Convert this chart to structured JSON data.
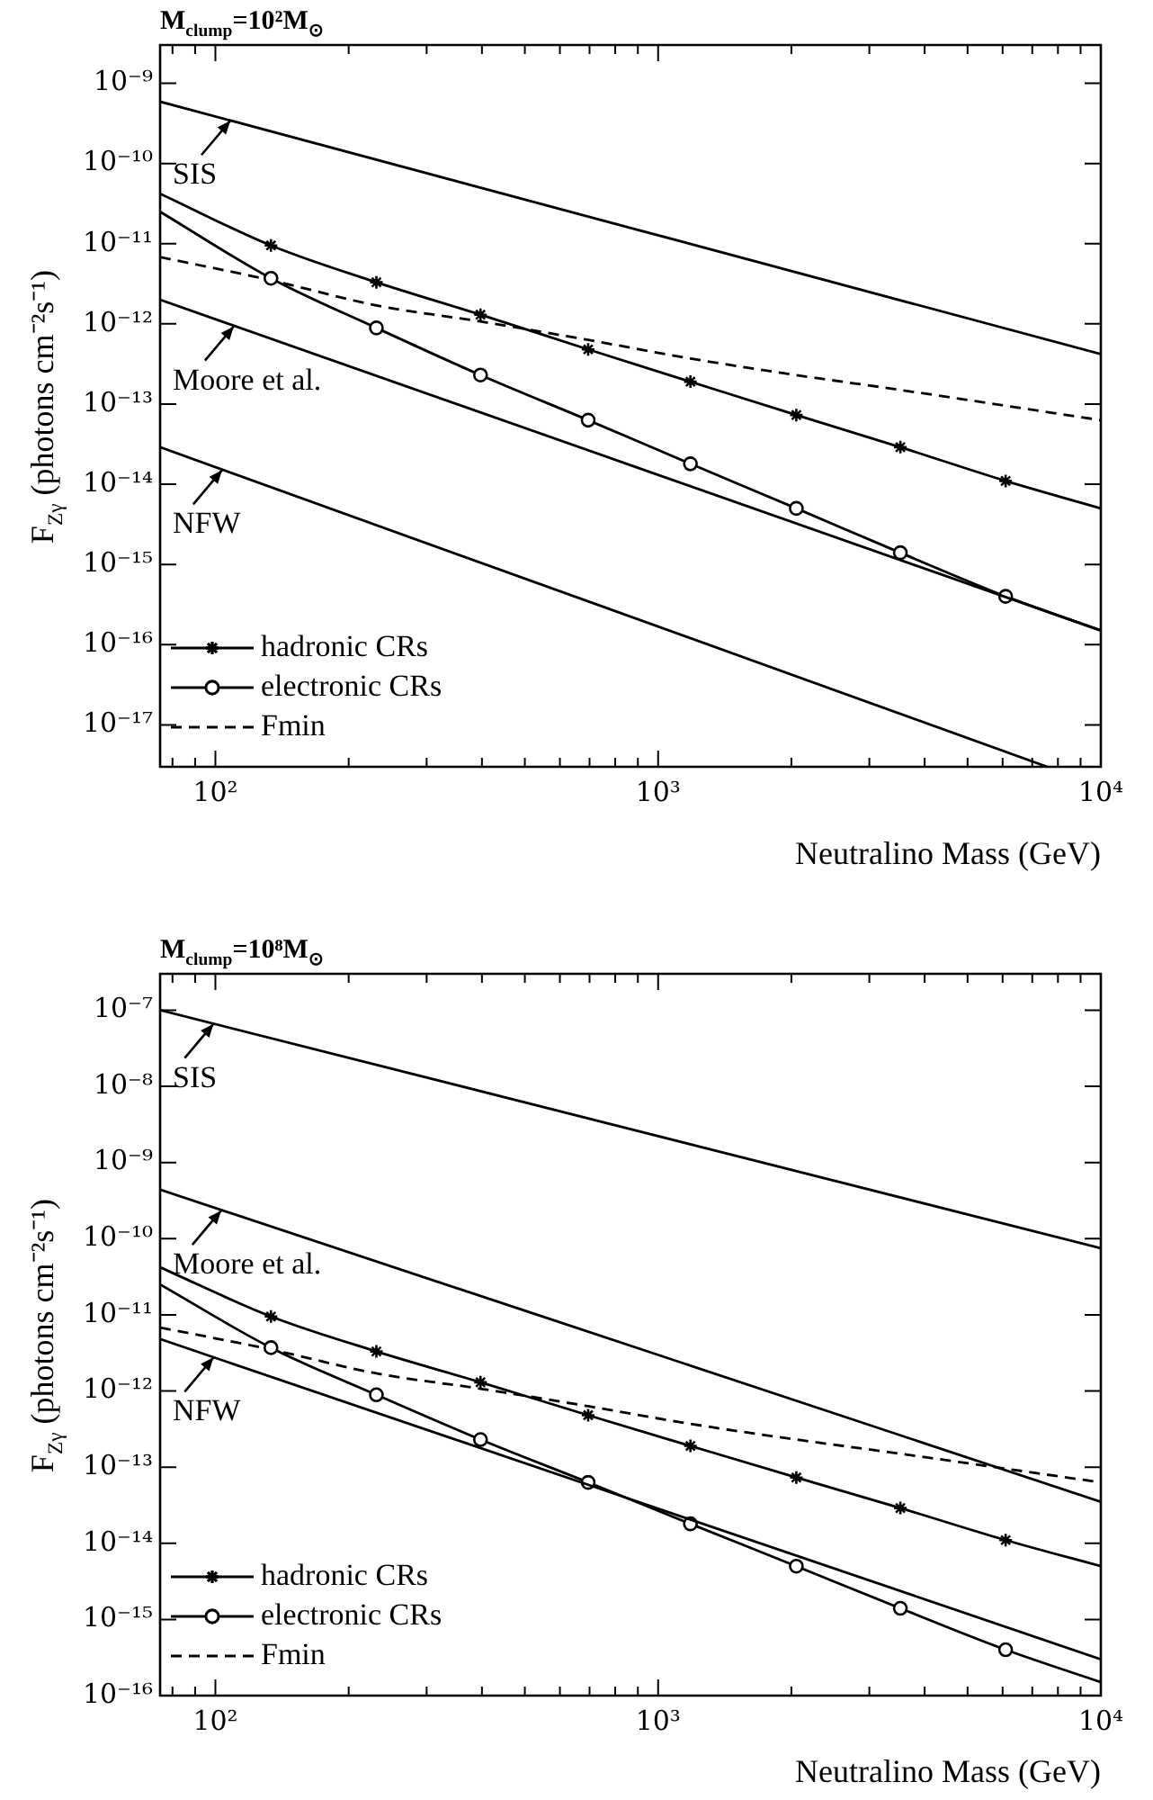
{
  "chart_data": [
    {
      "type": "line",
      "title": "M$_{clump}$=10²M$_{⊙}$",
      "xlabel": "Neutralino Mass (GeV)",
      "ylabel": "F$_{Zγ}$ (photons cm⁻²s⁻¹)",
      "log": "xy",
      "grid": false,
      "legend": "bottom left",
      "xlim": [
        75,
        10000
      ],
      "ylim": [
        3e-18,
        3e-09
      ],
      "xticks": [
        {
          "value": 80,
          "label": null
        },
        {
          "value": 90,
          "label": null
        },
        {
          "value": 100,
          "label": "10²"
        },
        {
          "value": 200,
          "label": null
        },
        {
          "value": 300,
          "label": null
        },
        {
          "value": 400,
          "label": null
        },
        {
          "value": 500,
          "label": null
        },
        {
          "value": 600,
          "label": null
        },
        {
          "value": 700,
          "label": null
        },
        {
          "value": 800,
          "label": null
        },
        {
          "value": 900,
          "label": null
        },
        {
          "value": 1000,
          "label": "10³"
        },
        {
          "value": 2000,
          "label": null
        },
        {
          "value": 3000,
          "label": null
        },
        {
          "value": 4000,
          "label": null
        },
        {
          "value": 5000,
          "label": null
        },
        {
          "value": 6000,
          "label": null
        },
        {
          "value": 7000,
          "label": null
        },
        {
          "value": 8000,
          "label": null
        },
        {
          "value": 9000,
          "label": null
        },
        {
          "value": 10000,
          "label": "10⁴"
        }
      ],
      "yticks": [
        {
          "value": 1e-17,
          "label": "10⁻¹⁷"
        },
        {
          "value": 1e-16,
          "label": "10⁻¹⁶"
        },
        {
          "value": 1e-15,
          "label": "10⁻¹⁵"
        },
        {
          "value": 1e-14,
          "label": "10⁻¹⁴"
        },
        {
          "value": 1e-13,
          "label": "10⁻¹³"
        },
        {
          "value": 1e-12,
          "label": "10⁻¹²"
        },
        {
          "value": 1e-11,
          "label": "10⁻¹¹"
        },
        {
          "value": 1e-10,
          "label": "10⁻¹⁰"
        },
        {
          "value": 1e-09,
          "label": "10⁻⁹"
        }
      ],
      "annotations": [
        {
          "text": "SIS",
          "x": 108,
          "y": 3.4e-10
        },
        {
          "text": "Moore et al.",
          "x": 110,
          "y": 9.3e-13
        },
        {
          "text": "NFW",
          "x": 103.5,
          "y": 1.5e-14
        }
      ],
      "series": [
        {
          "color": "#000000",
          "marker": "none",
          "line_style": "solid",
          "x": [
            75,
            10000
          ],
          "values": [
            5.9e-10,
            4.2e-13
          ]
        },
        {
          "color": "#000000",
          "marker": "none",
          "line_style": "solid",
          "x": [
            75,
            10000
          ],
          "values": [
            2e-12,
            1.5e-16
          ]
        },
        {
          "color": "#000000",
          "marker": "none",
          "line_style": "solid",
          "x": [
            75,
            7570
          ],
          "values": [
            2.9e-14,
            3e-18
          ]
        },
        {
          "name": "hadronic CRs",
          "color": "#000000",
          "marker": "cross",
          "line_style": "solid",
          "x": [
            75,
            133.5,
            231,
            397,
            695,
            1183,
            2052,
            3525,
            6095,
            10000
          ],
          "values": [
            4.2e-11,
            9.5e-12,
            3.3e-12,
            1.3e-12,
            4.8e-13,
            1.9e-13,
            7.3e-14,
            2.9e-14,
            1.1e-14,
            5e-15
          ]
        },
        {
          "name": "electronic CRs",
          "color": "#000000",
          "marker": "circle",
          "line_style": "solid",
          "x": [
            75,
            133.5,
            231,
            397,
            695,
            1183,
            2052,
            3525,
            6095,
            10000
          ],
          "values": [
            2.5e-11,
            3.7e-12,
            8.9e-13,
            2.3e-13,
            6.3e-14,
            1.8e-14,
            5e-15,
            1.4e-15,
            4e-16,
            1.5e-16
          ]
        },
        {
          "name": "Fmin",
          "color": "#000000",
          "marker": "none",
          "line_style": "dashed",
          "x": [
            75,
            133.5,
            231,
            397,
            695,
            1183,
            2052,
            3525,
            10000
          ],
          "values": [
            6.8e-12,
            3.5e-12,
            1.7e-12,
            1.07e-12,
            6.3e-13,
            3.7e-13,
            2.3e-13,
            1.5e-13,
            6.3e-14
          ]
        }
      ]
    },
    {
      "type": "line",
      "title": "M$_{clump}$=10⁸M$_{⊙}$",
      "xlabel": "Neutralino Mass (GeV)",
      "ylabel": "F$_{Zγ}$ (photons cm⁻²s⁻¹)",
      "log": "xy",
      "grid": false,
      "legend": "bottom left",
      "xlim": [
        75,
        10000
      ],
      "ylim": [
        1e-16,
        3e-07
      ],
      "xticks": [
        {
          "value": 80,
          "label": null
        },
        {
          "value": 90,
          "label": null
        },
        {
          "value": 100,
          "label": "10²"
        },
        {
          "value": 200,
          "label": null
        },
        {
          "value": 300,
          "label": null
        },
        {
          "value": 400,
          "label": null
        },
        {
          "value": 500,
          "label": null
        },
        {
          "value": 600,
          "label": null
        },
        {
          "value": 700,
          "label": null
        },
        {
          "value": 800,
          "label": null
        },
        {
          "value": 900,
          "label": null
        },
        {
          "value": 1000,
          "label": "10³"
        },
        {
          "value": 2000,
          "label": null
        },
        {
          "value": 3000,
          "label": null
        },
        {
          "value": 4000,
          "label": null
        },
        {
          "value": 5000,
          "label": null
        },
        {
          "value": 6000,
          "label": null
        },
        {
          "value": 7000,
          "label": null
        },
        {
          "value": 8000,
          "label": null
        },
        {
          "value": 9000,
          "label": null
        },
        {
          "value": 10000,
          "label": "10⁴"
        }
      ],
      "yticks": [
        {
          "value": 1e-16,
          "label": "10⁻¹⁶"
        },
        {
          "value": 1e-15,
          "label": "10⁻¹⁵"
        },
        {
          "value": 1e-14,
          "label": "10⁻¹⁴"
        },
        {
          "value": 1e-13,
          "label": "10⁻¹³"
        },
        {
          "value": 1e-12,
          "label": "10⁻¹²"
        },
        {
          "value": 1e-11,
          "label": "10⁻¹¹"
        },
        {
          "value": 1e-10,
          "label": "10⁻¹⁰"
        },
        {
          "value": 1e-09,
          "label": "10⁻⁹"
        },
        {
          "value": 1e-08,
          "label": "10⁻⁸"
        },
        {
          "value": 1e-07,
          "label": "10⁻⁷"
        }
      ],
      "annotations": [
        {
          "text": "SIS",
          "x": 99,
          "y": 6.6e-08
        },
        {
          "text": "Moore et al.",
          "x": 103,
          "y": 2.33e-10
        },
        {
          "text": "NFW",
          "x": 99,
          "y": 2.75e-12
        }
      ],
      "series": [
        {
          "color": "#000000",
          "marker": "none",
          "line_style": "solid",
          "x": [
            75,
            10000
          ],
          "values": [
            1e-07,
            7.5e-11
          ]
        },
        {
          "color": "#000000",
          "marker": "none",
          "line_style": "solid",
          "x": [
            75,
            10000
          ],
          "values": [
            4.4e-10,
            3.5e-14
          ]
        },
        {
          "color": "#000000",
          "marker": "none",
          "line_style": "solid",
          "x": [
            75,
            10000
          ],
          "values": [
            4.8e-12,
            3e-16
          ]
        },
        {
          "name": "hadronic CRs",
          "color": "#000000",
          "marker": "cross",
          "line_style": "solid",
          "x": [
            75,
            133.5,
            231,
            397,
            695,
            1183,
            2052,
            3525,
            6095,
            10000
          ],
          "values": [
            4.2e-11,
            9.5e-12,
            3.3e-12,
            1.3e-12,
            4.8e-13,
            1.9e-13,
            7.3e-14,
            2.9e-14,
            1.1e-14,
            5e-15
          ]
        },
        {
          "name": "electronic CRs",
          "color": "#000000",
          "marker": "circle",
          "line_style": "solid",
          "x": [
            75,
            133.5,
            231,
            397,
            695,
            1183,
            2052,
            3525,
            6095,
            10000
          ],
          "values": [
            2.5e-11,
            3.7e-12,
            8.9e-13,
            2.3e-13,
            6.3e-14,
            1.8e-14,
            5e-15,
            1.4e-15,
            4e-16,
            1.5e-16
          ]
        },
        {
          "name": "Fmin",
          "color": "#000000",
          "marker": "none",
          "line_style": "dashed",
          "x": [
            75,
            133.5,
            231,
            397,
            695,
            1183,
            2052,
            3525,
            10000
          ],
          "values": [
            6.8e-12,
            3.5e-12,
            1.7e-12,
            1.07e-12,
            6.3e-13,
            3.7e-13,
            2.3e-13,
            1.5e-13,
            6.3e-14
          ]
        }
      ]
    }
  ]
}
